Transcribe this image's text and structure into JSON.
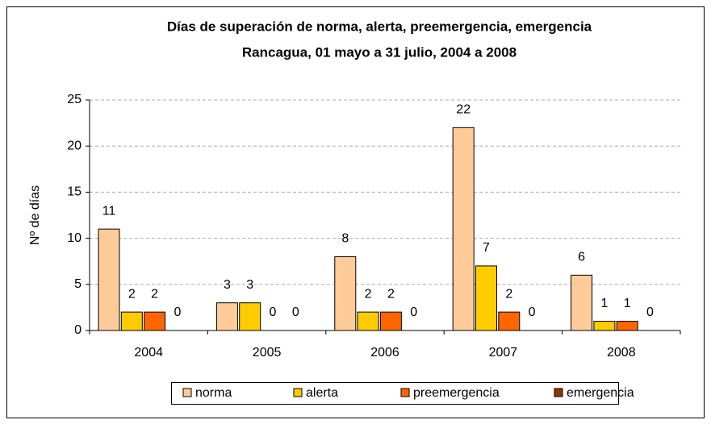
{
  "chart_data": {
    "type": "bar",
    "title": "Días de superación de norma, alerta, preemergencia, emergencia",
    "subtitle": "Rancagua, 01 mayo a 31 julio, 2004 a 2008",
    "y_label": "Nº de días",
    "categories": [
      "2004",
      "2005",
      "2006",
      "2007",
      "2008"
    ],
    "series": [
      {
        "name": "norma",
        "color": "#ffcc99",
        "values": [
          11,
          3,
          8,
          22,
          6
        ]
      },
      {
        "name": "alerta",
        "color": "#ffcc00",
        "values": [
          2,
          3,
          2,
          7,
          1
        ]
      },
      {
        "name": "preemergencia",
        "color": "#ff6600",
        "values": [
          2,
          0,
          2,
          2,
          1
        ]
      },
      {
        "name": "emergencia",
        "color": "#993300",
        "values": [
          0,
          0,
          0,
          0,
          0
        ]
      }
    ],
    "ylim": [
      0,
      25
    ],
    "yticks": [
      0,
      5,
      10,
      15,
      20,
      25
    ],
    "grid": true,
    "legend": "bottom"
  }
}
